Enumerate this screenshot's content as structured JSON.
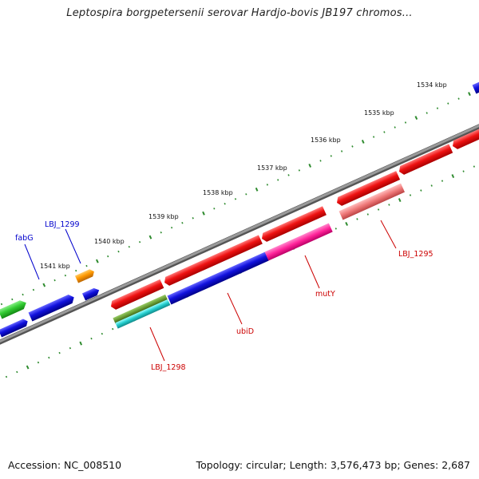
{
  "title": "Leptospira borgpetersenii serovar Hardjo-bovis JB197 chromos...",
  "footer": {
    "accession": "Accession: NC_008510",
    "topology": "Topology: circular; Length: 3,576,473 bp; Genes: 2,687"
  },
  "kbp_ticks": [
    "1534 kbp",
    "1535 kbp",
    "1536 kbp",
    "1537 kbp",
    "1538 kbp",
    "1539 kbp",
    "1540 kbp",
    "1541 kbp"
  ],
  "gene_labels": {
    "fabG": "fabG",
    "lbj1299": "LBJ_1299",
    "lbj1298": "LBJ_1298",
    "ubiD": "ubiD",
    "mutY": "mutY",
    "lbj1295": "LBJ_1295"
  },
  "colors": {
    "backbone": "#8c8c8c",
    "tick": "#2e8b2e",
    "red": "#ee1111",
    "blue": "#1111dd",
    "green": "#33cc33",
    "orange": "#ff9900",
    "olive": "#669933",
    "cyan": "#22cccc",
    "magenta": "#ff2299",
    "pink": "#ee7777",
    "label_blue": "#0000cc",
    "label_red": "#cc0000"
  }
}
